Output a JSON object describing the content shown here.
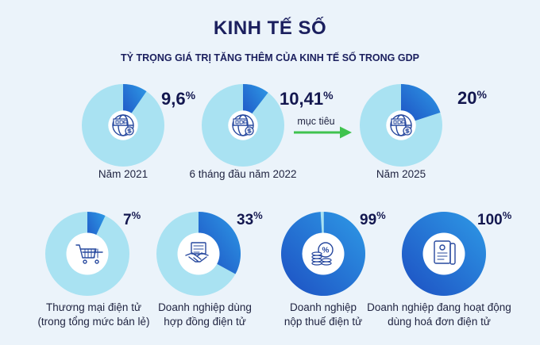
{
  "header": {
    "title": "KINH TẾ SỐ",
    "subtitle": "TỶ TRỌNG GIÁ TRỊ TĂNG THÊM CỦA KINH TẾ SỐ TRONG GDP"
  },
  "arrow_label": "mục tiêu",
  "colors": {
    "background": "#ebf3fa",
    "ring_light": "#a9e2f2",
    "segment_dark": "#1d4fc2",
    "segment_light": "#2e9ae6",
    "icon": "#27489e",
    "arrow": "#3fc24e"
  },
  "chart_data": [
    {
      "type": "pie",
      "title": "TỶ TRỌNG GIÁ TRỊ TĂNG THÊM CỦA KINH TẾ SỐ TRONG GDP",
      "items": [
        {
          "label": "Năm 2021",
          "value": 9.6,
          "value_label": "9,6%",
          "icon": "gdp-globe-icon"
        },
        {
          "label": "6 tháng đầu năm 2022",
          "value": 10.41,
          "value_label": "10,41%",
          "icon": "gdp-globe-icon"
        },
        {
          "label": "Năm 2025",
          "value": 20,
          "value_label": "20%",
          "icon": "gdp-globe-icon"
        }
      ]
    },
    {
      "type": "pie",
      "items": [
        {
          "label_lines": [
            "Thương mại điện tử",
            "(trong tổng mức bán lẻ)"
          ],
          "value": 7,
          "value_label": "7%",
          "icon": "shopping-cart-icon"
        },
        {
          "label_lines": [
            "Doanh nghiệp dùng",
            "hợp đồng điện tử"
          ],
          "value": 33,
          "value_label": "33%",
          "icon": "handshake-contract-icon"
        },
        {
          "label_lines": [
            "Doanh nghiệp",
            "nộp thuế điện tử"
          ],
          "value": 99,
          "value_label": "99%",
          "icon": "tax-coins-icon"
        },
        {
          "label_lines": [
            "Doanh nghiệp đang hoạt động",
            "dùng hoá đơn điện tử"
          ],
          "value": 100,
          "value_label": "100%",
          "icon": "invoice-icon"
        }
      ]
    }
  ]
}
